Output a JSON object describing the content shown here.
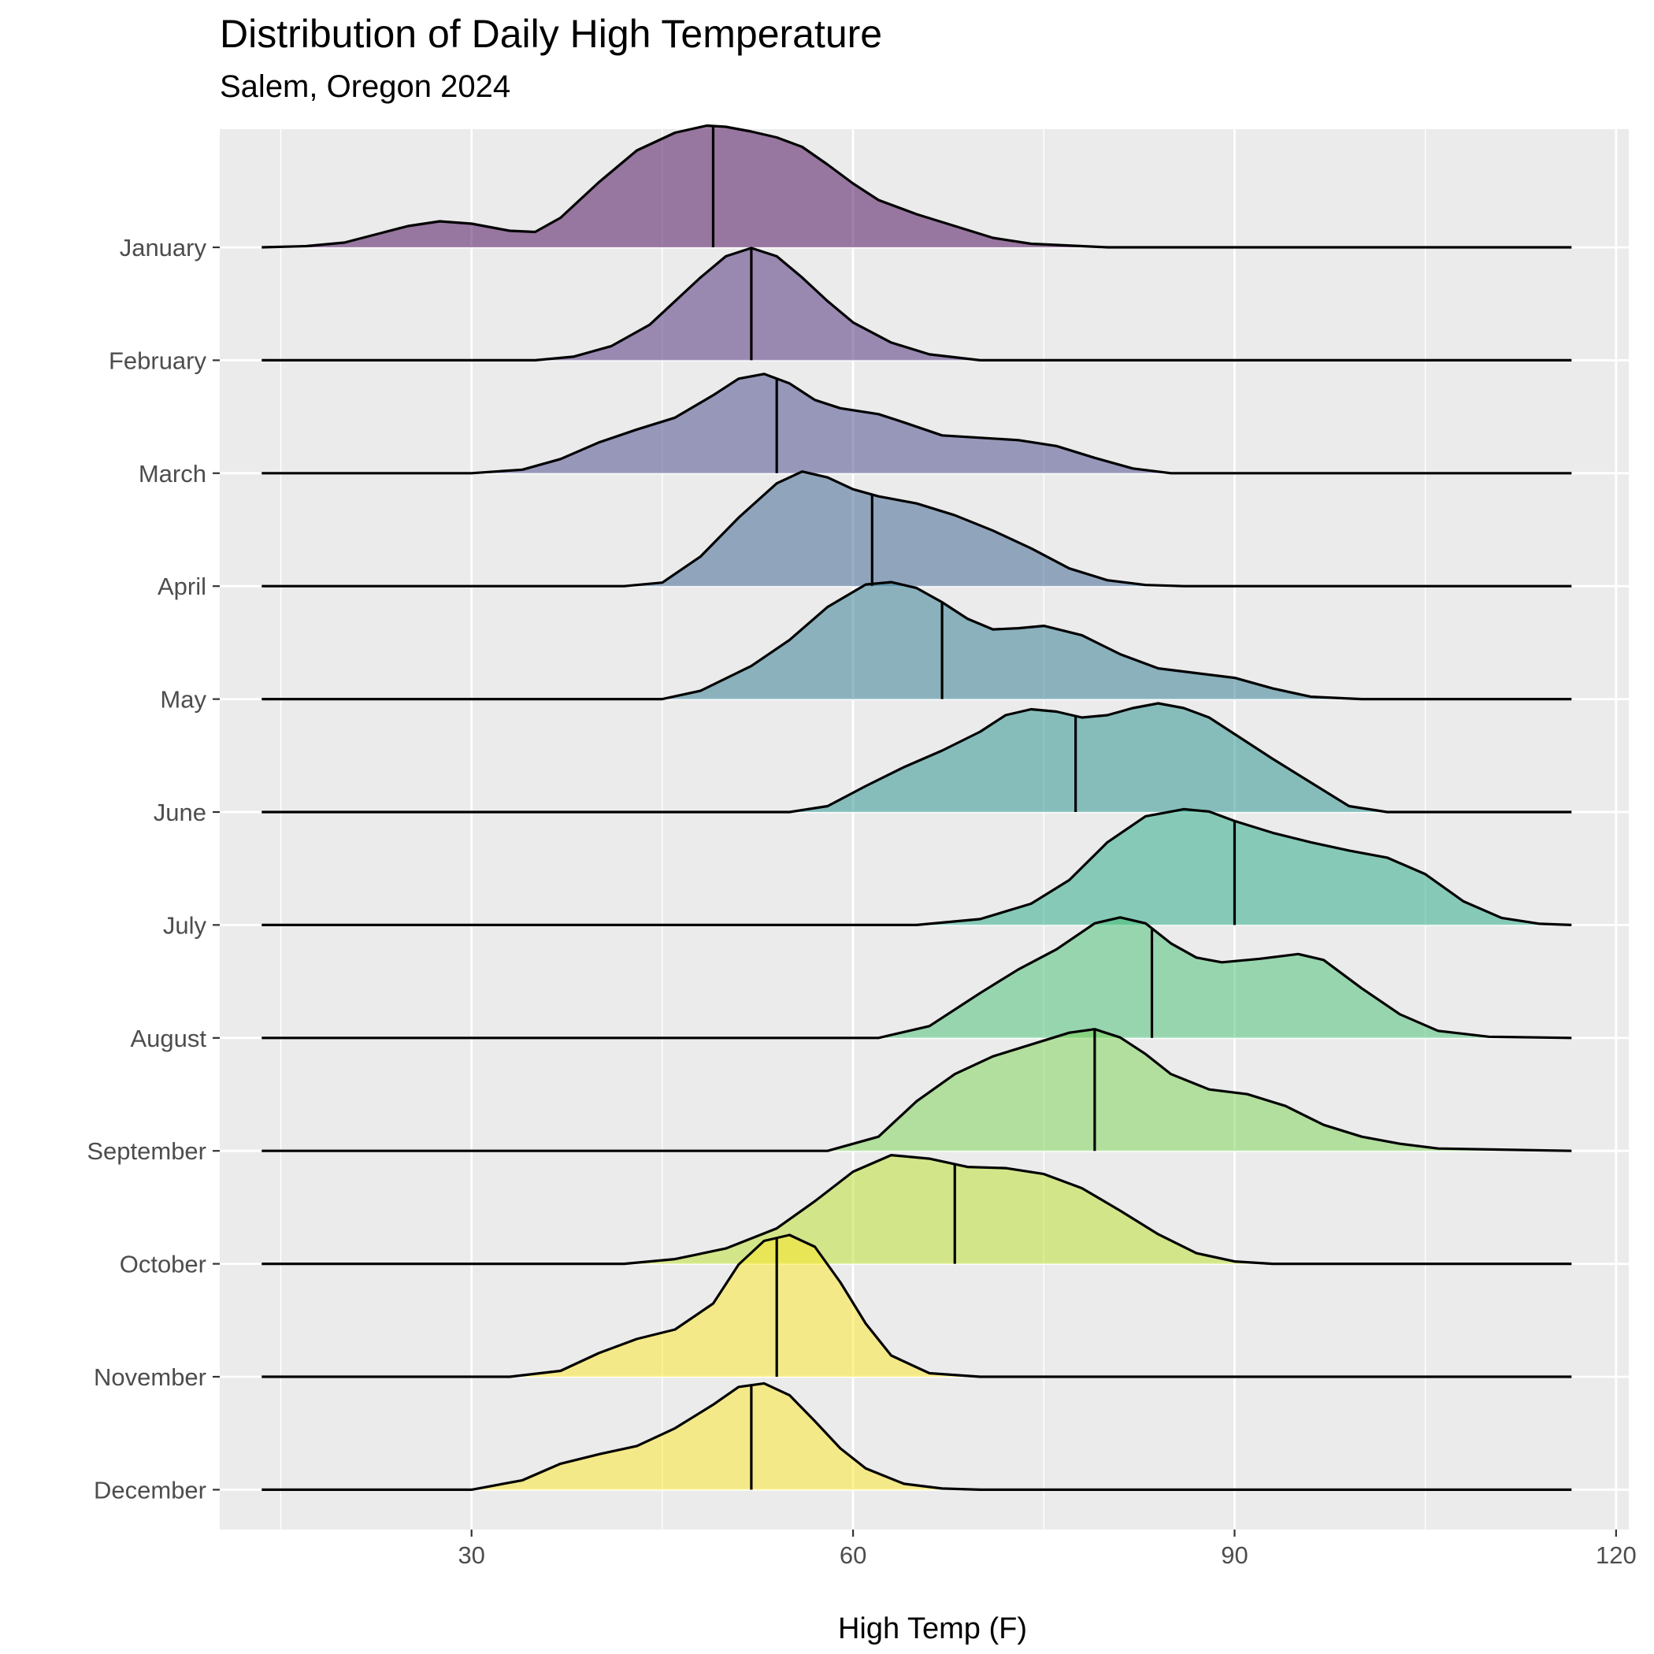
{
  "chart_data": {
    "type": "ridgeline",
    "title": "Distribution of Daily High Temperature",
    "subtitle": "Salem, Oregon 2024",
    "xlabel": "High Temp (F)",
    "ylabel": "",
    "xlim": [
      10.2,
      121.0
    ],
    "x_ticks": [
      30,
      60,
      90,
      120
    ],
    "density_range": [
      13.5,
      116.5
    ],
    "grid": true,
    "legend": "none",
    "panel_background": "#ebebeb",
    "colors": {
      "January": "#440154",
      "February": "#482576",
      "March": "#414487",
      "April": "#35608d",
      "May": "#2a788e",
      "June": "#21908c",
      "July": "#22a884",
      "August": "#43bf71",
      "September": "#7ad151",
      "October": "#bbdf27",
      "November": "#fde725",
      "December": "#fde725"
    },
    "series": [
      {
        "name": "January",
        "median": 49.0,
        "x": [
          13.5,
          17,
          20,
          22.5,
          25,
          27.5,
          30,
          33,
          35,
          37,
          40,
          43,
          46,
          48.5,
          50,
          52,
          54,
          56,
          58,
          60,
          62,
          65,
          68,
          71,
          74,
          80,
          116.5
        ],
        "y": [
          0,
          0.01,
          0.04,
          0.11,
          0.18,
          0.22,
          0.2,
          0.14,
          0.13,
          0.25,
          0.55,
          0.82,
          0.97,
          1.03,
          1.02,
          0.98,
          0.93,
          0.85,
          0.7,
          0.54,
          0.4,
          0.28,
          0.18,
          0.08,
          0.03,
          0,
          0
        ]
      },
      {
        "name": "February",
        "median": 52.0,
        "x": [
          13.5,
          35,
          38,
          41,
          44,
          46,
          48,
          50,
          52,
          54,
          56,
          58,
          60,
          63,
          66,
          70,
          116.5
        ],
        "y": [
          0,
          0,
          0.03,
          0.12,
          0.3,
          0.5,
          0.7,
          0.88,
          0.95,
          0.88,
          0.7,
          0.5,
          0.32,
          0.15,
          0.05,
          0,
          0
        ]
      },
      {
        "name": "March",
        "median": 54.0,
        "x": [
          13.5,
          30,
          34,
          37,
          40,
          43,
          46,
          49,
          51,
          53,
          55,
          57,
          59,
          62,
          64,
          67,
          70,
          73,
          76,
          79,
          82,
          85,
          90,
          116.5
        ],
        "y": [
          0,
          0,
          0.03,
          0.12,
          0.26,
          0.37,
          0.47,
          0.66,
          0.8,
          0.84,
          0.76,
          0.62,
          0.55,
          0.5,
          0.43,
          0.32,
          0.3,
          0.28,
          0.23,
          0.13,
          0.04,
          0,
          0,
          0
        ]
      },
      {
        "name": "April",
        "median": 61.5,
        "x": [
          13.5,
          42,
          45,
          48,
          51,
          54,
          56,
          58,
          60,
          62,
          65,
          68,
          71,
          74,
          77,
          80,
          83,
          86,
          116.5
        ],
        "y": [
          0,
          0,
          0.03,
          0.25,
          0.58,
          0.87,
          0.97,
          0.92,
          0.82,
          0.76,
          0.7,
          0.6,
          0.47,
          0.32,
          0.15,
          0.05,
          0.01,
          0,
          0
        ]
      },
      {
        "name": "May",
        "median": 67.0,
        "x": [
          13.5,
          45,
          48,
          52,
          55,
          58,
          61,
          63,
          65,
          67,
          69,
          71,
          73,
          75,
          78,
          81,
          84,
          87,
          90,
          93,
          96,
          100,
          116.5
        ],
        "y": [
          0,
          0,
          0.07,
          0.28,
          0.5,
          0.78,
          0.97,
          0.99,
          0.94,
          0.82,
          0.68,
          0.59,
          0.6,
          0.62,
          0.54,
          0.38,
          0.26,
          0.22,
          0.18,
          0.09,
          0.02,
          0,
          0
        ]
      },
      {
        "name": "June",
        "median": 77.5,
        "x": [
          13.5,
          55,
          58,
          61,
          64,
          67,
          70,
          72,
          74,
          76,
          78,
          80,
          82,
          84,
          86,
          88,
          90,
          93,
          96,
          99,
          102,
          116.5
        ],
        "y": [
          0,
          0,
          0.05,
          0.22,
          0.38,
          0.52,
          0.68,
          0.82,
          0.87,
          0.85,
          0.8,
          0.82,
          0.88,
          0.92,
          0.88,
          0.8,
          0.66,
          0.45,
          0.25,
          0.05,
          0,
          0
        ]
      },
      {
        "name": "July",
        "median": 90.0,
        "x": [
          13.5,
          65,
          70,
          74,
          77,
          80,
          83,
          86,
          88,
          90,
          93,
          96,
          99,
          102,
          105,
          108,
          111,
          114,
          116.5
        ],
        "y": [
          0,
          0,
          0.05,
          0.18,
          0.38,
          0.7,
          0.92,
          0.98,
          0.96,
          0.88,
          0.78,
          0.7,
          0.63,
          0.57,
          0.43,
          0.2,
          0.06,
          0.01,
          0
        ]
      },
      {
        "name": "August",
        "median": 83.5,
        "x": [
          13.5,
          62,
          66,
          70,
          73,
          76,
          79,
          81,
          83,
          85,
          87,
          89,
          92,
          95,
          97,
          100,
          103,
          106,
          110,
          116.5
        ],
        "y": [
          0,
          0,
          0.1,
          0.38,
          0.58,
          0.75,
          0.97,
          1.02,
          0.97,
          0.8,
          0.68,
          0.64,
          0.67,
          0.71,
          0.66,
          0.42,
          0.2,
          0.06,
          0.01,
          0
        ]
      },
      {
        "name": "September",
        "median": 79.0,
        "x": [
          13.5,
          58,
          62,
          65,
          68,
          71,
          74,
          77,
          79,
          81,
          83,
          85,
          88,
          91,
          94,
          97,
          100,
          103,
          106,
          116.5
        ],
        "y": [
          0,
          0,
          0.12,
          0.42,
          0.65,
          0.8,
          0.9,
          1.0,
          1.03,
          0.96,
          0.82,
          0.65,
          0.52,
          0.48,
          0.38,
          0.22,
          0.12,
          0.06,
          0.02,
          0
        ]
      },
      {
        "name": "October",
        "median": 68.0,
        "x": [
          13.5,
          42,
          46,
          50,
          54,
          57,
          60,
          63,
          66,
          69,
          72,
          75,
          78,
          81,
          84,
          87,
          90,
          93,
          96,
          116.5
        ],
        "y": [
          0,
          0,
          0.04,
          0.13,
          0.3,
          0.53,
          0.78,
          0.92,
          0.89,
          0.82,
          0.81,
          0.76,
          0.64,
          0.45,
          0.25,
          0.09,
          0.02,
          0,
          0,
          0
        ]
      },
      {
        "name": "November",
        "median": 54.0,
        "x": [
          13.5,
          33,
          37,
          40,
          43,
          46,
          49,
          51,
          53,
          55,
          57,
          59,
          61,
          63,
          66,
          70,
          116.5
        ],
        "y": [
          0,
          0,
          0.05,
          0.2,
          0.32,
          0.4,
          0.62,
          0.95,
          1.15,
          1.2,
          1.1,
          0.8,
          0.45,
          0.18,
          0.03,
          0,
          0
        ]
      },
      {
        "name": "December",
        "median": 52.0,
        "x": [
          13.5,
          30,
          34,
          37,
          40,
          43,
          46,
          49,
          51,
          53,
          55,
          57,
          59,
          61,
          64,
          67,
          70,
          116.5
        ],
        "y": [
          0,
          0,
          0.08,
          0.22,
          0.3,
          0.37,
          0.52,
          0.72,
          0.87,
          0.9,
          0.8,
          0.58,
          0.35,
          0.18,
          0.05,
          0.01,
          0,
          0
        ]
      }
    ]
  }
}
